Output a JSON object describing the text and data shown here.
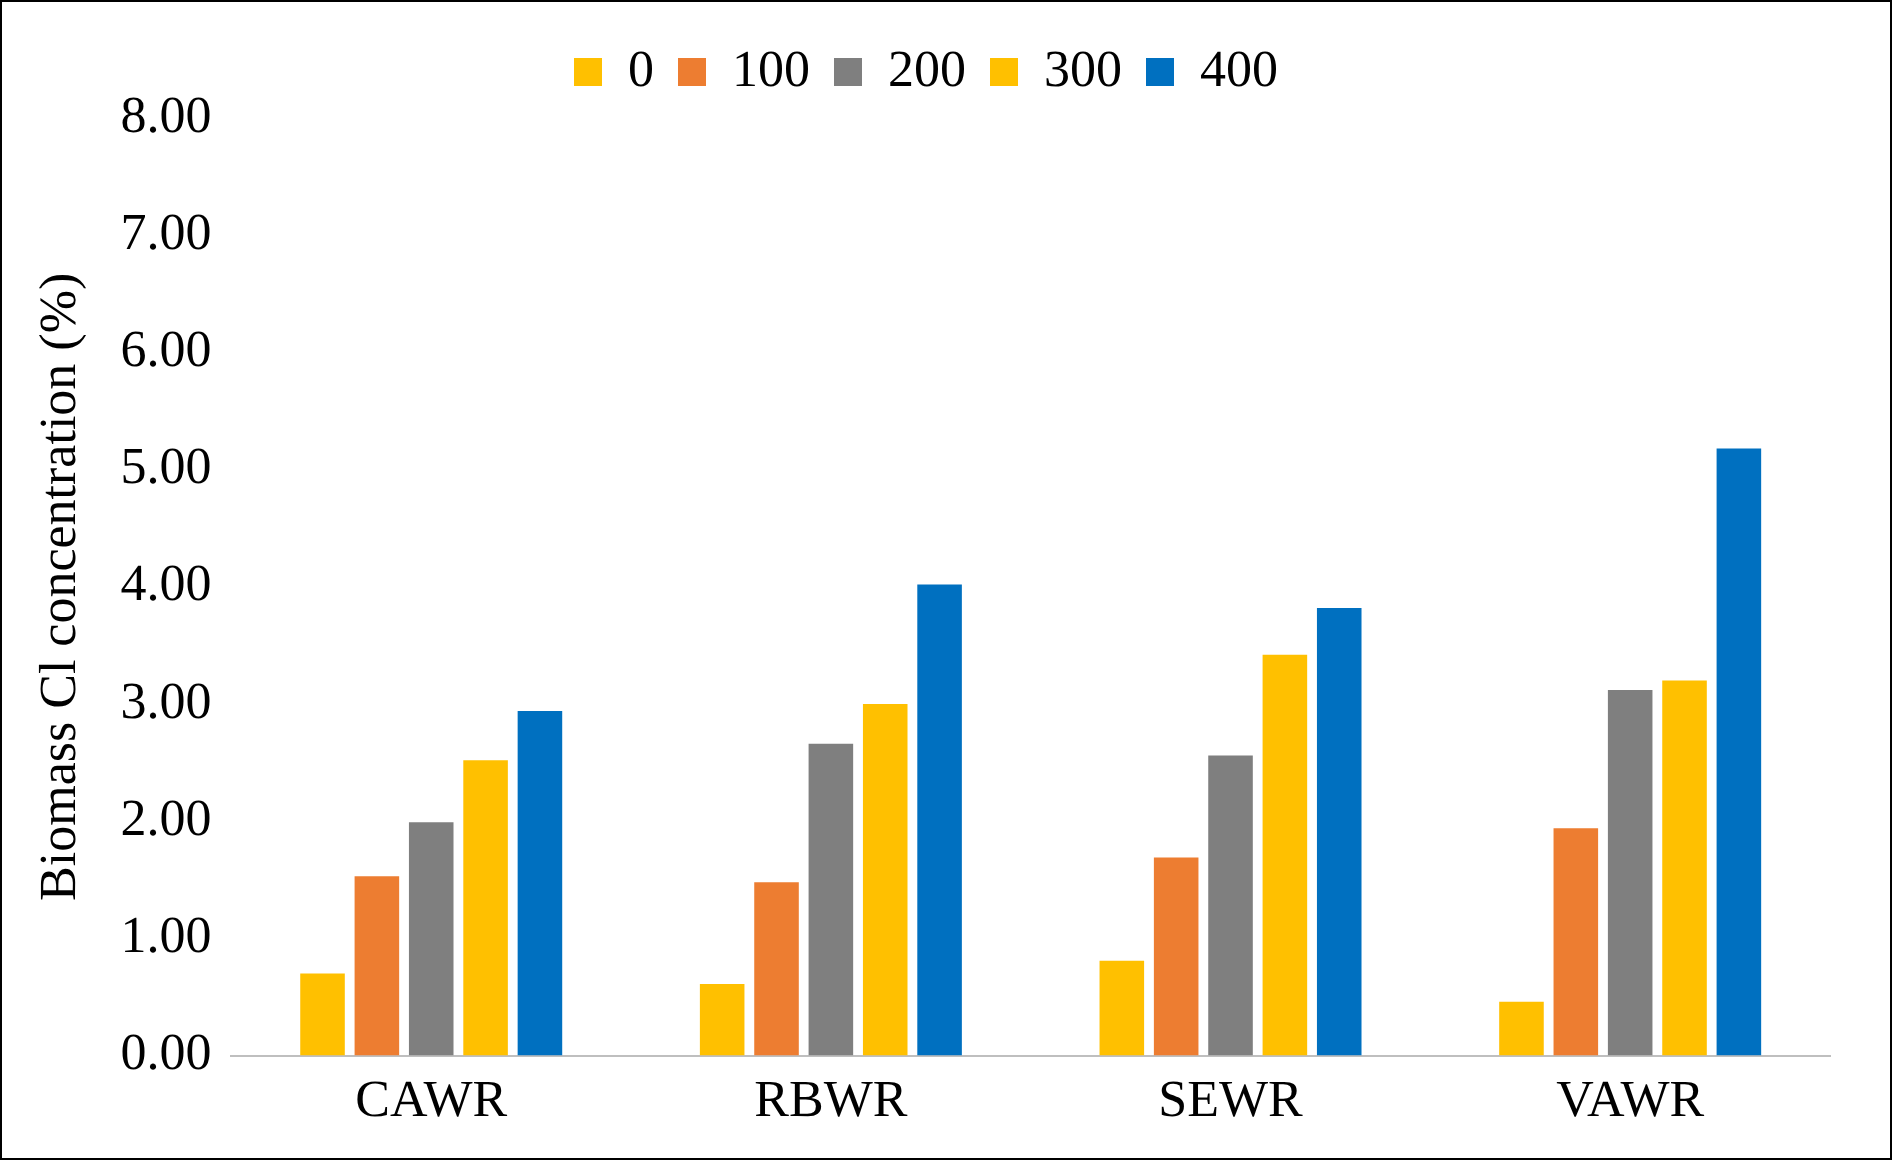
{
  "chart_data": {
    "type": "bar",
    "ylabel": "Biomass Cl concentration (%)",
    "categories": [
      "CAWR",
      "RBWR",
      "SEWR",
      "VAWR"
    ],
    "series": [
      {
        "name": "0",
        "color": "#ffc000",
        "values": [
          0.7,
          0.61,
          0.81,
          0.46
        ]
      },
      {
        "name": "100",
        "color": "#ed7d31",
        "values": [
          1.53,
          1.48,
          1.69,
          1.94
        ]
      },
      {
        "name": "200",
        "color": "#7f7f7f",
        "values": [
          1.99,
          2.66,
          2.56,
          3.12
        ]
      },
      {
        "name": "300",
        "color": "#ffc000",
        "values": [
          2.52,
          3.0,
          3.42,
          3.2
        ]
      },
      {
        "name": "400",
        "color": "#0070c0",
        "values": [
          2.94,
          4.02,
          3.82,
          5.18
        ]
      }
    ],
    "ylim": [
      0,
      8
    ],
    "yticks": [
      {
        "value": 0,
        "label": "0.00"
      },
      {
        "value": 1,
        "label": "1.00"
      },
      {
        "value": 2,
        "label": "2.00"
      },
      {
        "value": 3,
        "label": "3.00"
      },
      {
        "value": 4,
        "label": "4.00"
      },
      {
        "value": 5,
        "label": "5.00"
      },
      {
        "value": 6,
        "label": "6.00"
      },
      {
        "value": 7,
        "label": "7.00"
      },
      {
        "value": 8,
        "label": "8.00"
      }
    ],
    "legend": "top",
    "grid": false
  }
}
